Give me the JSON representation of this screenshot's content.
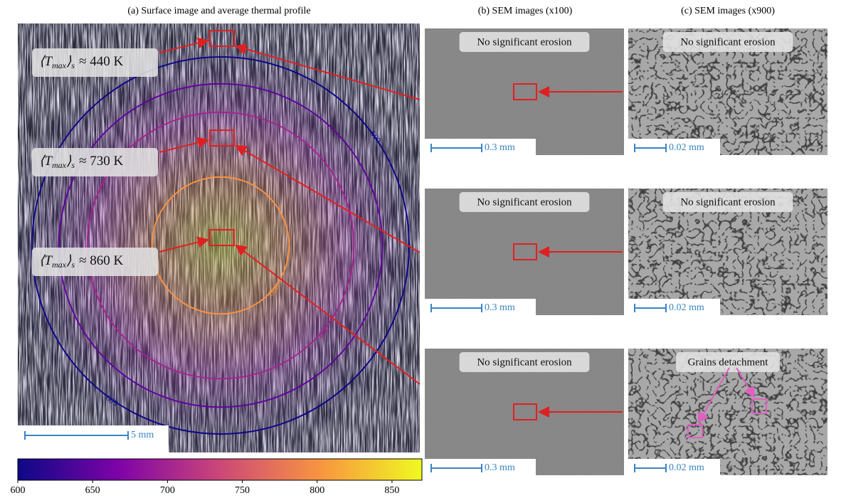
{
  "figure": {
    "panel_a": {
      "title": "(a) Surface image and average thermal profile",
      "annotations": [
        {
          "lead": "⟨T",
          "sub": "max",
          "close": "⟩",
          "close_sub": "s",
          "tail": "≈ 440 K"
        },
        {
          "lead": "⟨T",
          "sub": "max",
          "close": "⟩",
          "close_sub": "s",
          "tail": "≈ 730 K"
        },
        {
          "lead": "⟨T",
          "sub": "max",
          "close": "⟩",
          "close_sub": "s",
          "tail": "≈ 860 K"
        }
      ],
      "contour_levels": [
        600,
        650,
        700,
        800
      ],
      "scale_bar": "5 mm"
    },
    "colorbar": {
      "lim": [
        600,
        870
      ],
      "ticks": [
        600,
        650,
        700,
        750,
        800,
        850
      ]
    },
    "panel_b": {
      "title": "(b) SEM images (x100)",
      "labels": [
        "No significant erosion",
        "No significant erosion",
        "No significant erosion"
      ],
      "scale_bar": "0.3 mm"
    },
    "panel_c": {
      "title": "(c) SEM images (x900)",
      "labels": [
        "No significant erosion",
        "No significant erosion",
        "Grains detachment"
      ],
      "scale_bar": "0.02 mm"
    }
  }
}
